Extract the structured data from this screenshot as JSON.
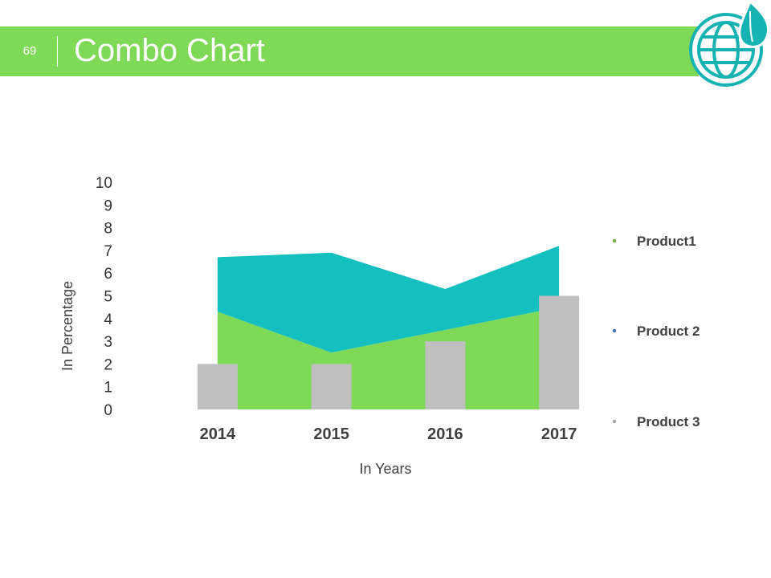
{
  "slide": {
    "number": "69",
    "title": "Combo Chart"
  },
  "logo": {
    "icon": "globe-leaf-icon",
    "color": "#17b3b3"
  },
  "chart_data": {
    "type": "area",
    "title": "Combo Chart",
    "xlabel": "In Years",
    "ylabel": "In Percentage",
    "categories": [
      "2014",
      "2015",
      "2016",
      "2017"
    ],
    "ylim": [
      0,
      10
    ],
    "yticks": [
      "0",
      "1",
      "2",
      "3",
      "4",
      "5",
      "6",
      "7",
      "8",
      "9",
      "10"
    ],
    "series": [
      {
        "name": "Product1",
        "kind": "area",
        "color": "#7ed957",
        "values": [
          4.3,
          2.5,
          3.5,
          4.5
        ]
      },
      {
        "name": "Product 2",
        "kind": "area-stacked",
        "color": "#14bfbf",
        "values": [
          2.4,
          4.4,
          1.8,
          2.7
        ]
      },
      {
        "name": "Product 3",
        "kind": "bar",
        "color": "#bfbfbf",
        "values": [
          2,
          2,
          3,
          5
        ]
      }
    ],
    "legend": {
      "placement": "right",
      "items": [
        "Product1",
        "Product 2",
        "Product 3"
      ],
      "bullet_colors": [
        "#70ad47",
        "#4472c4",
        "#a5a5a5"
      ]
    }
  }
}
